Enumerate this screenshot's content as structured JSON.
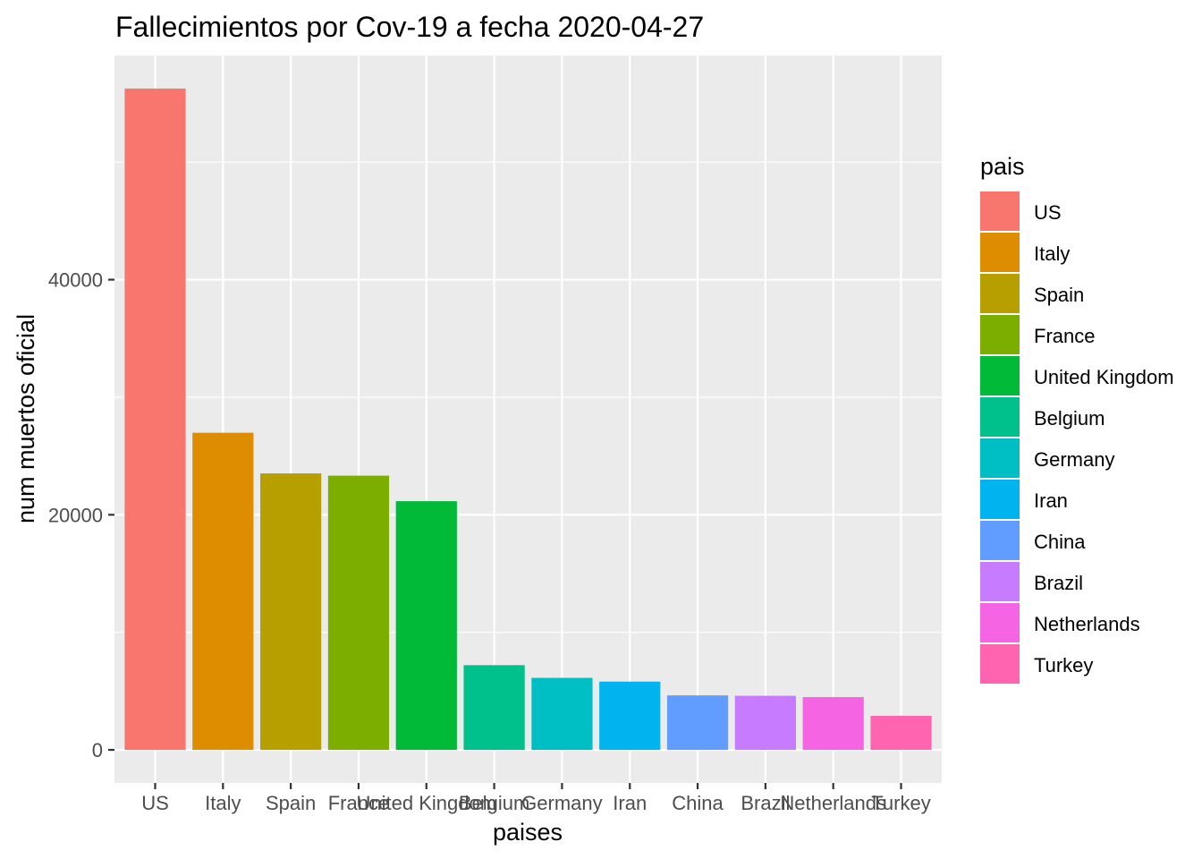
{
  "chart_data": {
    "type": "bar",
    "title": "Fallecimientos por Cov-19 a fecha 2020-04-27",
    "xlabel": "paises",
    "ylabel": "num muertos oficial",
    "categories": [
      "US",
      "Italy",
      "Spain",
      "France",
      "United Kingdom",
      "Belgium",
      "Germany",
      "Iran",
      "China",
      "Brazil",
      "Netherlands",
      "Turkey"
    ],
    "values": [
      56259,
      26977,
      23521,
      23327,
      21157,
      7207,
      6126,
      5806,
      4637,
      4603,
      4491,
      2900
    ],
    "colors": [
      "#F8766D",
      "#DE8C00",
      "#B79F00",
      "#7CAE00",
      "#00BA38",
      "#00C08B",
      "#00BFC4",
      "#00B4F0",
      "#619CFF",
      "#C77CFF",
      "#F564E3",
      "#FF64B0"
    ],
    "ylim": [
      -2813,
      59072
    ],
    "yticks": [
      0,
      20000,
      40000
    ],
    "ytick_labels": [
      "0",
      "20000",
      "40000"
    ],
    "grid": true,
    "legend": {
      "title": "pais",
      "position": "right",
      "entries": [
        "US",
        "Italy",
        "Spain",
        "France",
        "United Kingdom",
        "Belgium",
        "Germany",
        "Iran",
        "China",
        "Brazil",
        "Netherlands",
        "Turkey"
      ]
    }
  }
}
